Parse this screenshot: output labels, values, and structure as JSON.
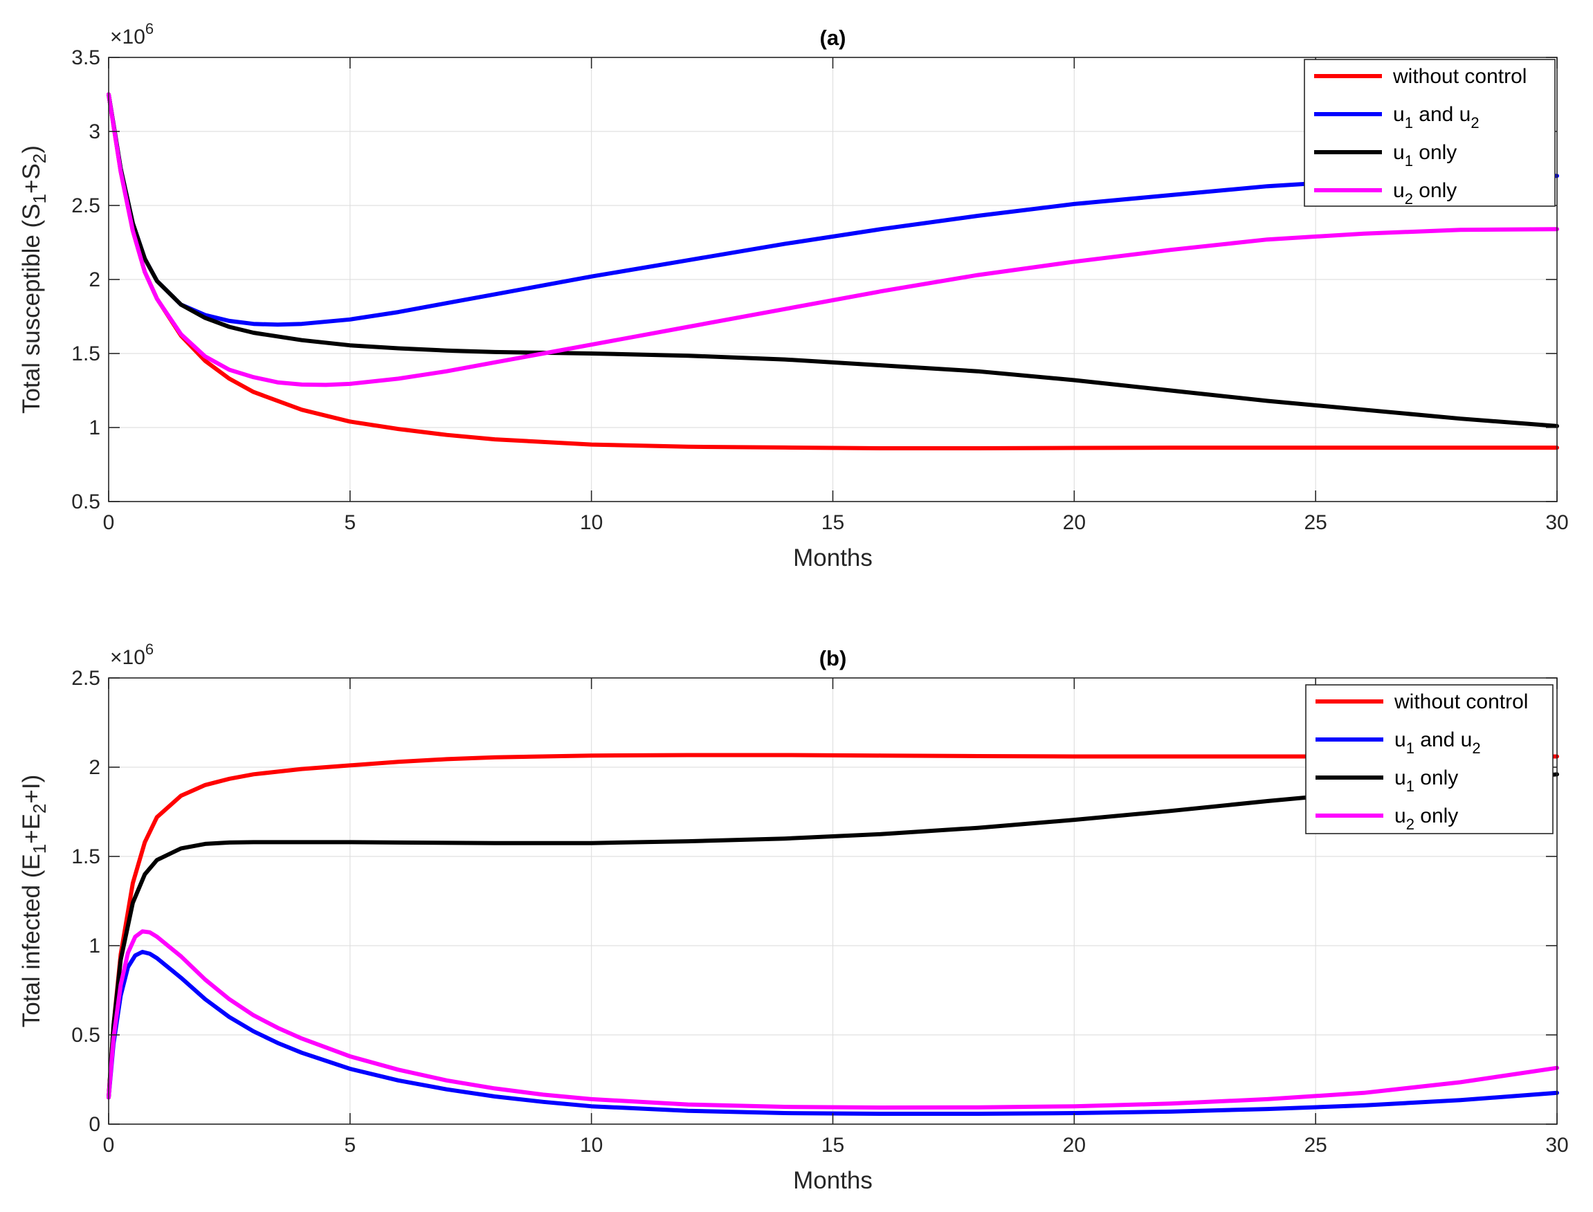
{
  "chart_data": [
    {
      "type": "line",
      "title": "(a)",
      "xlabel": "Months",
      "ylabel": {
        "text": "Total susceptible (S",
        "sub1": "1",
        "mid": "+S",
        "sub2": "2",
        "end": ")"
      },
      "exponent": {
        "base": "×10",
        "power": "6"
      },
      "xlim": [
        0,
        30
      ],
      "ylim": [
        0.5,
        3.5
      ],
      "xticks": [
        0,
        5,
        10,
        15,
        20,
        25,
        30
      ],
      "yticks": [
        0.5,
        1,
        1.5,
        2,
        2.5,
        3,
        3.5
      ],
      "xtick_labels": [
        "0",
        "5",
        "10",
        "15",
        "20",
        "25",
        "30"
      ],
      "ytick_labels": [
        "0.5",
        "1",
        "1.5",
        "2",
        "2.5",
        "3",
        "3.5"
      ],
      "grid": true,
      "legend": "top-right",
      "series": [
        {
          "name": "without control",
          "legend": {
            "u": "without control",
            "sub": "",
            "rest": ""
          },
          "color": "#ff0000",
          "x": [
            0,
            0.25,
            0.5,
            0.75,
            1,
            1.5,
            2,
            2.5,
            3,
            4,
            5,
            6,
            7,
            8,
            10,
            12,
            14,
            16,
            18,
            20,
            22,
            24,
            26,
            28,
            30
          ],
          "y": [
            3.25,
            2.73,
            2.33,
            2.05,
            1.87,
            1.62,
            1.45,
            1.33,
            1.24,
            1.12,
            1.04,
            0.99,
            0.95,
            0.92,
            0.885,
            0.87,
            0.865,
            0.86,
            0.86,
            0.862,
            0.864,
            0.864,
            0.864,
            0.864,
            0.864
          ]
        },
        {
          "name": "u1 and u2",
          "legend": {
            "u": "u",
            "sub": "1",
            "rest": " and u",
            "sub2": "2"
          },
          "color": "#0000ff",
          "x": [
            0,
            0.25,
            0.5,
            0.75,
            1,
            1.5,
            2,
            2.5,
            3,
            3.5,
            4,
            5,
            6,
            7,
            8,
            9,
            10,
            12,
            14,
            16,
            18,
            20,
            22,
            24,
            26,
            28,
            30
          ],
          "y": [
            3.25,
            2.75,
            2.38,
            2.14,
            1.99,
            1.83,
            1.76,
            1.72,
            1.7,
            1.695,
            1.7,
            1.73,
            1.78,
            1.84,
            1.9,
            1.96,
            2.02,
            2.13,
            2.24,
            2.34,
            2.43,
            2.51,
            2.57,
            2.63,
            2.67,
            2.69,
            2.7
          ]
        },
        {
          "name": "u1 only",
          "legend": {
            "u": "u",
            "sub": "1",
            "rest": " only"
          },
          "color": "#000000",
          "x": [
            0,
            0.25,
            0.5,
            0.75,
            1,
            1.5,
            2,
            2.5,
            3,
            4,
            5,
            6,
            7,
            8,
            9,
            10,
            12,
            14,
            16,
            18,
            20,
            22,
            24,
            26,
            28,
            30
          ],
          "y": [
            3.25,
            2.75,
            2.38,
            2.14,
            1.99,
            1.83,
            1.74,
            1.68,
            1.64,
            1.59,
            1.555,
            1.535,
            1.52,
            1.51,
            1.505,
            1.5,
            1.485,
            1.46,
            1.42,
            1.38,
            1.32,
            1.25,
            1.18,
            1.12,
            1.06,
            1.01
          ]
        },
        {
          "name": "u2 only",
          "legend": {
            "u": "u",
            "sub": "2",
            "rest": " only"
          },
          "color": "#ff00ff",
          "x": [
            0,
            0.25,
            0.5,
            0.75,
            1,
            1.5,
            2,
            2.5,
            3,
            3.5,
            4,
            4.5,
            5,
            6,
            7,
            8,
            9,
            10,
            12,
            14,
            16,
            18,
            20,
            22,
            24,
            26,
            28,
            30
          ],
          "y": [
            3.25,
            2.73,
            2.33,
            2.05,
            1.87,
            1.63,
            1.48,
            1.39,
            1.34,
            1.305,
            1.29,
            1.288,
            1.295,
            1.33,
            1.38,
            1.44,
            1.5,
            1.56,
            1.68,
            1.8,
            1.92,
            2.03,
            2.12,
            2.2,
            2.27,
            2.31,
            2.335,
            2.34
          ]
        }
      ]
    },
    {
      "type": "line",
      "title": "(b)",
      "xlabel": "Months",
      "ylabel": {
        "text": "Total infected (E",
        "sub1": "1",
        "mid": "+E",
        "sub2": "2",
        "end": "+I)"
      },
      "exponent": {
        "base": "×10",
        "power": "6"
      },
      "xlim": [
        0,
        30
      ],
      "ylim": [
        0,
        2.5
      ],
      "xticks": [
        0,
        5,
        10,
        15,
        20,
        25,
        30
      ],
      "yticks": [
        0,
        0.5,
        1,
        1.5,
        2,
        2.5
      ],
      "xtick_labels": [
        "0",
        "5",
        "10",
        "15",
        "20",
        "25",
        "30"
      ],
      "ytick_labels": [
        "0",
        "0.5",
        "1",
        "1.5",
        "2",
        "2.5"
      ],
      "grid": true,
      "legend": "top-right",
      "series": [
        {
          "name": "without control",
          "legend": {
            "u": "without control",
            "sub": "",
            "rest": ""
          },
          "color": "#ff0000",
          "x": [
            0,
            0.1,
            0.25,
            0.5,
            0.75,
            1,
            1.5,
            2,
            2.5,
            3,
            4,
            5,
            6,
            7,
            8,
            10,
            12,
            14,
            16,
            18,
            20,
            22,
            24,
            26,
            28,
            30
          ],
          "y": [
            0.15,
            0.55,
            0.95,
            1.35,
            1.58,
            1.72,
            1.84,
            1.9,
            1.935,
            1.96,
            1.99,
            2.01,
            2.03,
            2.045,
            2.055,
            2.065,
            2.068,
            2.068,
            2.065,
            2.062,
            2.06,
            2.06,
            2.06,
            2.06,
            2.06,
            2.06
          ]
        },
        {
          "name": "u1 and u2",
          "legend": {
            "u": "u",
            "sub": "1",
            "rest": " and u",
            "sub2": "2"
          },
          "color": "#0000ff",
          "x": [
            0,
            0.1,
            0.25,
            0.4,
            0.55,
            0.7,
            0.85,
            1,
            1.5,
            2,
            2.5,
            3,
            3.5,
            4,
            5,
            6,
            7,
            8,
            9,
            10,
            12,
            14,
            16,
            18,
            20,
            22,
            24,
            26,
            28,
            30
          ],
          "y": [
            0.15,
            0.45,
            0.72,
            0.88,
            0.945,
            0.965,
            0.955,
            0.93,
            0.82,
            0.7,
            0.6,
            0.52,
            0.455,
            0.4,
            0.31,
            0.245,
            0.195,
            0.155,
            0.125,
            0.1,
            0.075,
            0.062,
            0.058,
            0.058,
            0.062,
            0.07,
            0.085,
            0.105,
            0.135,
            0.175
          ]
        },
        {
          "name": "u1 only",
          "legend": {
            "u": "u",
            "sub": "1",
            "rest": " only"
          },
          "color": "#000000",
          "x": [
            0,
            0.1,
            0.25,
            0.5,
            0.75,
            1,
            1.5,
            2,
            2.5,
            3,
            4,
            5,
            6,
            8,
            10,
            12,
            14,
            16,
            18,
            20,
            22,
            24,
            26,
            28,
            30
          ],
          "y": [
            0.15,
            0.55,
            0.92,
            1.24,
            1.4,
            1.48,
            1.545,
            1.57,
            1.578,
            1.58,
            1.58,
            1.58,
            1.578,
            1.575,
            1.575,
            1.585,
            1.6,
            1.625,
            1.66,
            1.705,
            1.755,
            1.81,
            1.86,
            1.91,
            1.96
          ]
        },
        {
          "name": "u2 only",
          "legend": {
            "u": "u",
            "sub": "2",
            "rest": " only"
          },
          "color": "#ff00ff",
          "x": [
            0,
            0.1,
            0.25,
            0.4,
            0.55,
            0.7,
            0.85,
            1,
            1.5,
            2,
            2.5,
            3,
            3.5,
            4,
            5,
            6,
            7,
            8,
            9,
            10,
            12,
            14,
            16,
            18,
            20,
            22,
            24,
            26,
            28,
            30
          ],
          "y": [
            0.15,
            0.48,
            0.78,
            0.96,
            1.05,
            1.08,
            1.075,
            1.05,
            0.94,
            0.81,
            0.7,
            0.61,
            0.54,
            0.48,
            0.38,
            0.305,
            0.245,
            0.2,
            0.165,
            0.14,
            0.11,
            0.097,
            0.093,
            0.094,
            0.1,
            0.115,
            0.14,
            0.175,
            0.235,
            0.315
          ]
        }
      ]
    }
  ]
}
